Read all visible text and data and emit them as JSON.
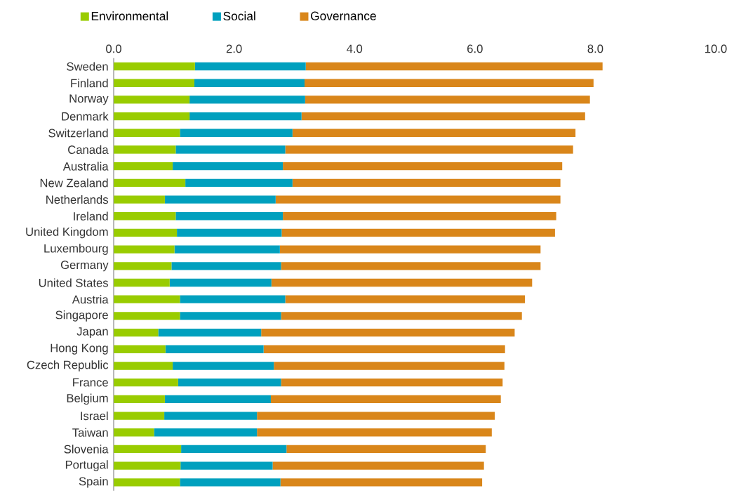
{
  "chart_data": {
    "type": "bar",
    "orientation": "horizontal",
    "stacked": true,
    "categories": [
      "Sweden",
      "Finland",
      "Norway",
      "Denmark",
      "Switzerland",
      "Canada",
      "Australia",
      "New Zealand",
      "Netherlands",
      "Ireland",
      "United Kingdom",
      "Luxembourg",
      "Germany",
      "United States",
      "Austria",
      "Singapore",
      "Japan",
      "Hong Kong",
      "Czech Republic",
      "France",
      "Belgium",
      "Israel",
      "Taiwan",
      "Slovenia",
      "Portugal",
      "Spain"
    ],
    "series": [
      {
        "name": "Environmental",
        "color": "#99cc00",
        "values": [
          1.35,
          1.34,
          1.26,
          1.26,
          1.1,
          1.03,
          0.98,
          1.19,
          0.85,
          1.03,
          1.05,
          1.01,
          0.96,
          0.93,
          1.1,
          1.1,
          0.74,
          0.86,
          0.98,
          1.07,
          0.85,
          0.84,
          0.67,
          1.12,
          1.11,
          1.1
        ]
      },
      {
        "name": "Social",
        "color": "#00a0be",
        "values": [
          1.84,
          1.83,
          1.92,
          1.86,
          1.87,
          1.82,
          1.83,
          1.78,
          1.84,
          1.78,
          1.74,
          1.75,
          1.82,
          1.69,
          1.75,
          1.68,
          1.71,
          1.63,
          1.68,
          1.71,
          1.76,
          1.54,
          1.71,
          1.75,
          1.53,
          1.67
        ]
      },
      {
        "name": "Governance",
        "color": "#d9861a",
        "values": [
          4.93,
          4.8,
          4.73,
          4.71,
          4.7,
          4.78,
          4.64,
          4.45,
          4.73,
          4.54,
          4.54,
          4.33,
          4.31,
          4.33,
          3.98,
          4.0,
          4.21,
          4.01,
          3.83,
          3.68,
          3.82,
          3.95,
          3.9,
          3.31,
          3.51,
          3.35
        ]
      }
    ],
    "xlim": [
      0,
      10
    ],
    "xticks": [
      {
        "value": 0,
        "label": "0.0"
      },
      {
        "value": 2,
        "label": "2.0"
      },
      {
        "value": 4,
        "label": "4.0"
      },
      {
        "value": 6,
        "label": "6.0"
      },
      {
        "value": 8,
        "label": "8.0"
      },
      {
        "value": 10,
        "label": "10.0"
      }
    ],
    "grid": false,
    "legend": "top left"
  }
}
